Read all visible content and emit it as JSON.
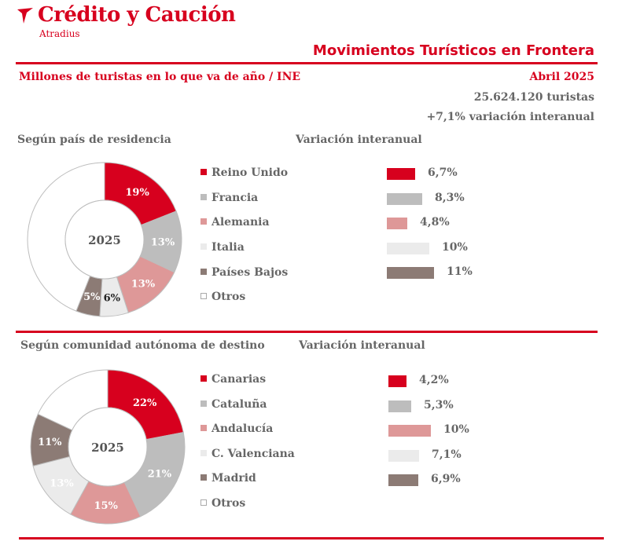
{
  "header": {
    "brand": "Crédito y Caución",
    "brand_sub": "Atradius",
    "report_title": "Movimientos Turísticos en Frontera",
    "subtitle": "Millones de turistas en lo que va de año / INE",
    "period": "Abril 2025",
    "total": "25.624.120 turistas",
    "variation": "+7,1% variación  interanual"
  },
  "colors": {
    "red": "#d7001e",
    "gray": "#bdbdbd",
    "pink": "#de9898",
    "light": "#ebebeb",
    "taupe": "#8c7b75",
    "white": "#ffffff"
  },
  "chart_data": [
    {
      "type": "pie",
      "title": "Según país de residencia",
      "center_label": "2025",
      "categories": [
        "Reino Unido",
        "Francia",
        "Alemania",
        "Italia",
        "Países Bajos",
        "Otros"
      ],
      "values": [
        19,
        13,
        13,
        6,
        5,
        44
      ],
      "labels": [
        "19%",
        "13%",
        "13%",
        "6%",
        "5%",
        ""
      ],
      "colors": [
        "#d7001e",
        "#bdbdbd",
        "#de9898",
        "#ebebeb",
        "#8c7b75",
        "#ffffff"
      ],
      "label_colors": [
        "#ffffff",
        "#ffffff",
        "#ffffff",
        "#222222",
        "#ffffff",
        "#555555"
      ]
    },
    {
      "type": "bar",
      "title": "Variación interanual",
      "categories": [
        "Reino Unido",
        "Francia",
        "Alemania",
        "Italia",
        "Países Bajos"
      ],
      "values": [
        6.7,
        8.3,
        4.8,
        10,
        11
      ],
      "labels": [
        "6,7%",
        "8,3%",
        "4,8%",
        "10%",
        "11%"
      ],
      "colors": [
        "#d7001e",
        "#bdbdbd",
        "#de9898",
        "#ebebeb",
        "#8c7b75"
      ]
    },
    {
      "type": "pie",
      "title": "Según comunidad autónoma de destino",
      "center_label": "2025",
      "categories": [
        "Canarias",
        "Cataluña",
        "Andalucía",
        "C. Valenciana",
        "Madrid",
        "Otros"
      ],
      "values": [
        22,
        21,
        15,
        13,
        11,
        18
      ],
      "labels": [
        "22%",
        "21%",
        "15%",
        "13%",
        "11%",
        ""
      ],
      "colors": [
        "#d7001e",
        "#bdbdbd",
        "#de9898",
        "#ebebeb",
        "#8c7b75",
        "#ffffff"
      ],
      "label_colors": [
        "#ffffff",
        "#ffffff",
        "#ffffff",
        "#ffffff",
        "#ffffff",
        "#555555"
      ]
    },
    {
      "type": "bar",
      "title": "Variación interanual",
      "categories": [
        "Canarias",
        "Cataluña",
        "Andalucía",
        "C. Valenciana",
        "Madrid"
      ],
      "values": [
        4.2,
        5.3,
        10,
        7.1,
        6.9
      ],
      "labels": [
        "4,2%",
        "5,3%",
        "10%",
        "7,1%",
        "6,9%"
      ],
      "colors": [
        "#d7001e",
        "#bdbdbd",
        "#de9898",
        "#ebebeb",
        "#8c7b75"
      ]
    }
  ]
}
